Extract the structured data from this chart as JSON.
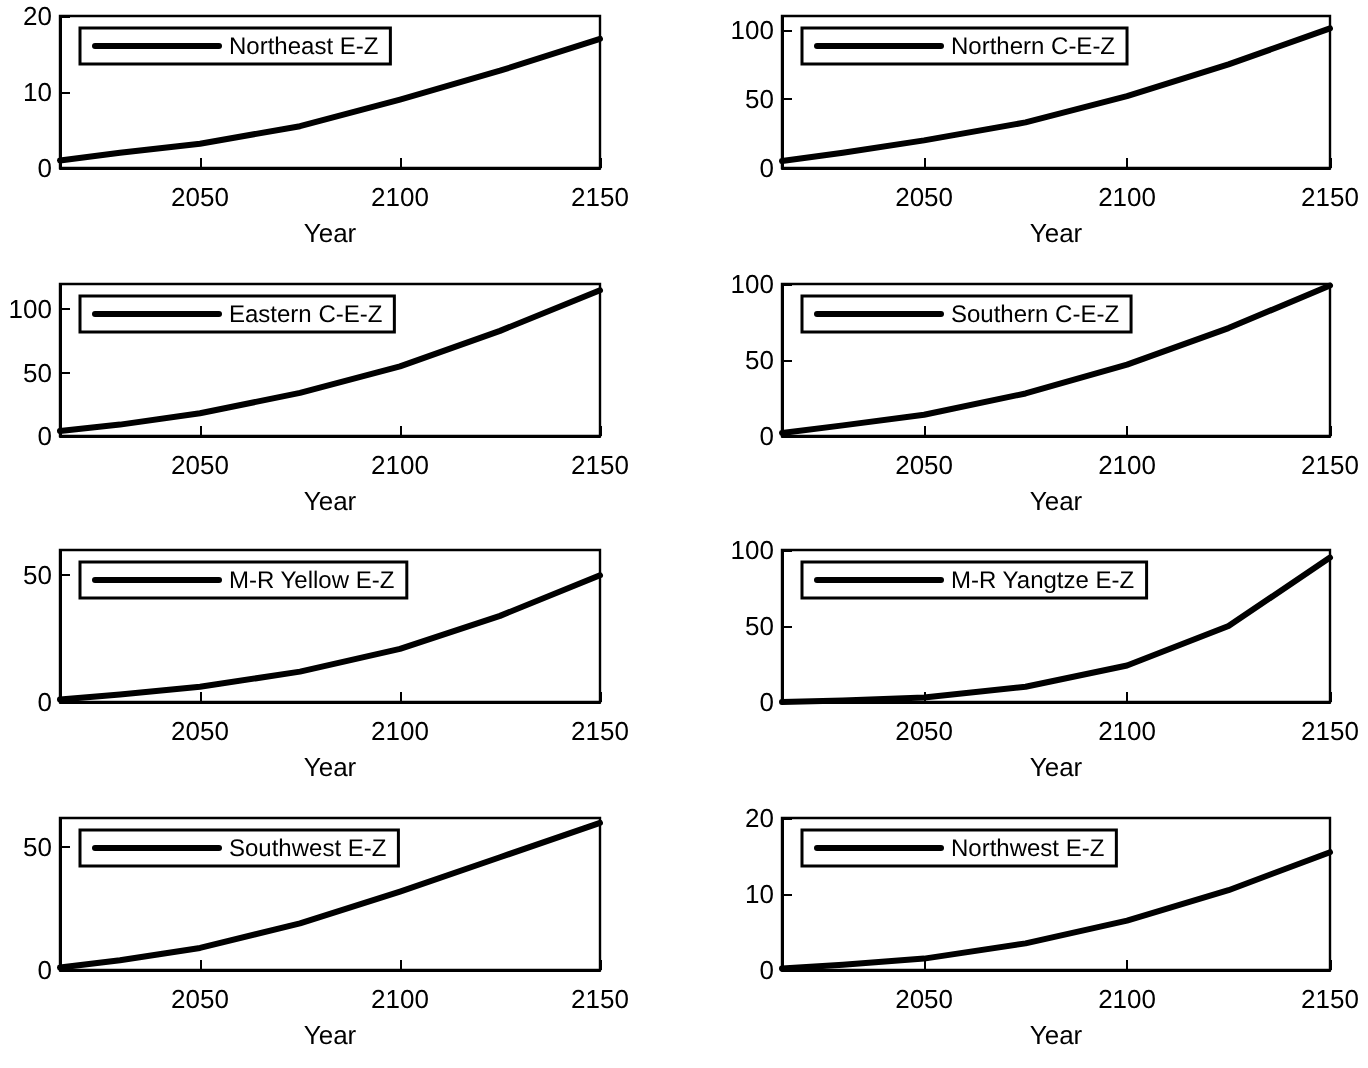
{
  "chart_data": [
    {
      "type": "line",
      "xlabel": "Year",
      "x": [
        2015,
        2030,
        2050,
        2075,
        2100,
        2125,
        2150
      ],
      "xlim": [
        2015,
        2150
      ],
      "xticks": [
        2050,
        2100,
        2150
      ],
      "ylim": [
        0,
        20
      ],
      "yticks": [
        0,
        10,
        20
      ],
      "legend": "top left",
      "grid": false,
      "series": [
        {
          "name": "Northeast E-Z",
          "color": "#000000",
          "values": [
            1,
            2,
            3.2,
            5.5,
            9,
            12.8,
            17
          ]
        }
      ]
    },
    {
      "type": "line",
      "xlabel": "Year",
      "x": [
        2015,
        2030,
        2050,
        2075,
        2100,
        2125,
        2150
      ],
      "xlim": [
        2015,
        2150
      ],
      "xticks": [
        2050,
        2100,
        2150
      ],
      "ylim": [
        0,
        110
      ],
      "yticks": [
        0,
        50,
        100
      ],
      "legend": "top left",
      "grid": false,
      "series": [
        {
          "name": "Northern C-E-Z",
          "color": "#000000",
          "values": [
            5,
            11,
            20,
            33,
            52,
            75,
            101
          ]
        }
      ]
    },
    {
      "type": "line",
      "xlabel": "Year",
      "x": [
        2015,
        2030,
        2050,
        2075,
        2100,
        2125,
        2150
      ],
      "xlim": [
        2015,
        2150
      ],
      "xticks": [
        2050,
        2100,
        2150
      ],
      "ylim": [
        0,
        120
      ],
      "yticks": [
        0,
        50,
        100
      ],
      "legend": "top left",
      "grid": false,
      "series": [
        {
          "name": "Eastern C-E-Z",
          "color": "#000000",
          "values": [
            4,
            9,
            18,
            34,
            55,
            83,
            115
          ]
        }
      ]
    },
    {
      "type": "line",
      "xlabel": "Year",
      "x": [
        2015,
        2030,
        2050,
        2075,
        2100,
        2125,
        2150
      ],
      "xlim": [
        2015,
        2150
      ],
      "xticks": [
        2050,
        2100,
        2150
      ],
      "ylim": [
        0,
        100
      ],
      "yticks": [
        0,
        50,
        100
      ],
      "legend": "top left",
      "grid": false,
      "series": [
        {
          "name": "Southern C-E-Z",
          "color": "#000000",
          "values": [
            2,
            7,
            14,
            28,
            47,
            71,
            99
          ]
        }
      ]
    },
    {
      "type": "line",
      "xlabel": "Year",
      "x": [
        2015,
        2030,
        2050,
        2075,
        2100,
        2125,
        2150
      ],
      "xlim": [
        2015,
        2150
      ],
      "xticks": [
        2050,
        2100,
        2150
      ],
      "ylim": [
        0,
        60
      ],
      "yticks": [
        0,
        50
      ],
      "legend": "top left",
      "grid": false,
      "series": [
        {
          "name": "M-R Yellow E-Z",
          "color": "#000000",
          "values": [
            1,
            3,
            6,
            12,
            21,
            34,
            50
          ]
        }
      ]
    },
    {
      "type": "line",
      "xlabel": "Year",
      "x": [
        2015,
        2030,
        2050,
        2075,
        2100,
        2125,
        2150
      ],
      "xlim": [
        2015,
        2150
      ],
      "xticks": [
        2050,
        2100,
        2150
      ],
      "ylim": [
        0,
        100
      ],
      "yticks": [
        0,
        50,
        100
      ],
      "legend": "top left",
      "grid": false,
      "series": [
        {
          "name": "M-R Yangtze E-Z",
          "color": "#000000",
          "values": [
            0,
            1,
            3,
            10,
            24,
            50,
            95
          ]
        }
      ]
    },
    {
      "type": "line",
      "xlabel": "Year",
      "x": [
        2015,
        2030,
        2050,
        2075,
        2100,
        2125,
        2150
      ],
      "xlim": [
        2015,
        2150
      ],
      "xticks": [
        2050,
        2100,
        2150
      ],
      "ylim": [
        0,
        62
      ],
      "yticks": [
        0,
        50
      ],
      "legend": "top left",
      "grid": false,
      "series": [
        {
          "name": "Southwest E-Z",
          "color": "#000000",
          "values": [
            1,
            4,
            9,
            19,
            32,
            46,
            60
          ]
        }
      ]
    },
    {
      "type": "line",
      "xlabel": "Year",
      "x": [
        2015,
        2030,
        2050,
        2075,
        2100,
        2125,
        2150
      ],
      "xlim": [
        2015,
        2150
      ],
      "xticks": [
        2050,
        2100,
        2150
      ],
      "ylim": [
        0,
        20
      ],
      "yticks": [
        0,
        10,
        20
      ],
      "legend": "top left",
      "grid": false,
      "series": [
        {
          "name": "Northwest E-Z",
          "color": "#000000",
          "values": [
            0.2,
            0.7,
            1.5,
            3.5,
            6.5,
            10.5,
            15.5
          ]
        }
      ]
    }
  ]
}
